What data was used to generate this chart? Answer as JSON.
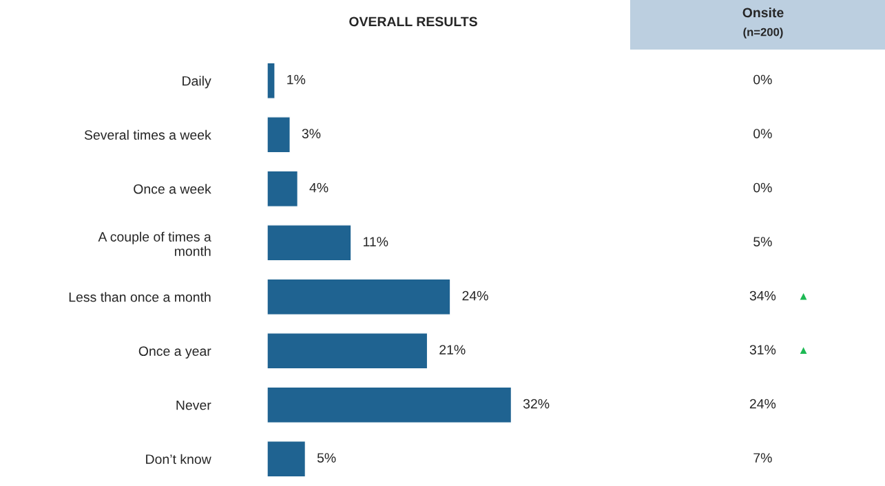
{
  "chart_data": [
    {
      "type": "bar",
      "orientation": "horizontal",
      "title": "OVERALL RESULTS",
      "categories": [
        "Daily",
        "Several times a week",
        "Once a week",
        "A couple of times a month",
        "Less than once a month",
        "Once a year",
        "Never",
        "Don’t know"
      ],
      "values": [
        1,
        3,
        4,
        11,
        24,
        21,
        32,
        5
      ],
      "value_labels": [
        "1%",
        "3%",
        "4%",
        "11%",
        "24%",
        "21%",
        "32%",
        "5%"
      ],
      "color": "#1f6391",
      "grid": false,
      "legend": false
    },
    {
      "type": "other",
      "title": "Onsite",
      "subtitle": "(n=200)",
      "values": [
        0,
        0,
        0,
        5,
        34,
        31,
        24,
        7
      ],
      "value_labels": [
        "0%",
        "0%",
        "0%",
        "5%",
        "34%",
        "31%",
        "24%",
        "7%"
      ],
      "annotations": [
        {
          "text": "▲",
          "y": "34%"
        },
        {
          "text": "▲",
          "y": "31%"
        }
      ]
    }
  ]
}
